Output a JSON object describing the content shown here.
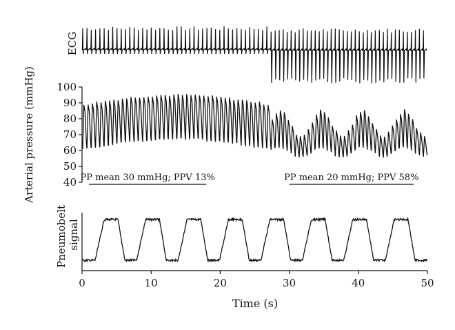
{
  "chart_data": [
    {
      "type": "line",
      "panel": "ecg",
      "ylabel": "ECG",
      "x_range": [
        0,
        50
      ],
      "series": [
        {
          "name": "",
          "description_values": {
            "beat_interval_s_0_27": 0.62,
            "beat_interval_s_27_50": 0.58
          }
        }
      ]
    },
    {
      "type": "line",
      "panel": "arterial-pressure",
      "ylabel": "Arterial pressure (mmHg)",
      "yticks": [
        40,
        50,
        60,
        70,
        80,
        90,
        100
      ],
      "ylim": [
        40,
        100
      ],
      "x_range": [
        0,
        50
      ],
      "annotations": [
        {
          "text": "PP mean 30 mmHg; PPV 13%",
          "x_start": 1,
          "x_end": 18
        },
        {
          "text": "PP mean 20 mmHg; PPV 58%",
          "x_start": 30,
          "x_end": 48
        }
      ],
      "segments": [
        {
          "x_start": 0,
          "x_end": 27,
          "systolic_approx": [
            89,
            95
          ],
          "diastolic_approx": [
            61,
            67
          ]
        },
        {
          "x_start": 27,
          "x_end": 50,
          "systolic_approx": [
            68,
            86
          ],
          "diastolic_approx": [
            55,
            63
          ]
        }
      ]
    },
    {
      "type": "line",
      "panel": "pneumobelt",
      "ylabel": "Pneumobelt signal",
      "xlabel": "Time (s)",
      "xticks": [
        0,
        10,
        20,
        30,
        40,
        50
      ],
      "xlim": [
        0,
        50
      ],
      "breath_peaks_s": [
        4.5,
        10.5,
        16.5,
        22.5,
        28.5,
        34.5,
        40.5,
        46.5
      ]
    }
  ]
}
